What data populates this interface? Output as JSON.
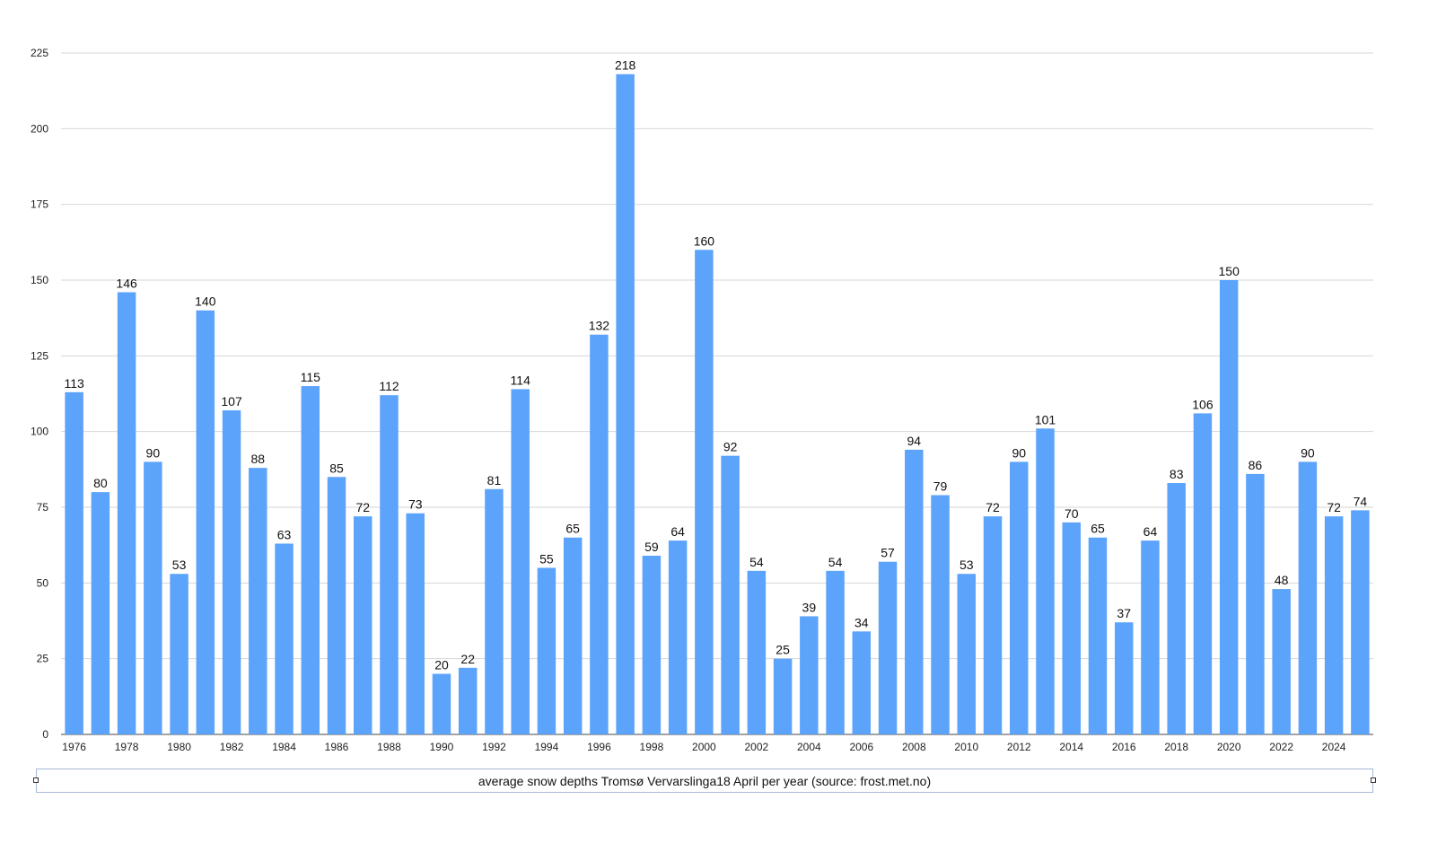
{
  "chart_data": {
    "type": "bar",
    "title": "",
    "caption": "average snow depths Tromsø Vervarslinga18 April per year (source: frost.met.no)",
    "xlabel": "",
    "ylabel": "",
    "ylim": [
      0,
      225
    ],
    "yticks": [
      0,
      25,
      50,
      75,
      100,
      125,
      150,
      175,
      200,
      225
    ],
    "grid": true,
    "bar_color": "#5ba3fb",
    "categories": [
      "1976",
      "1977",
      "1978",
      "1979",
      "1980",
      "1981",
      "1982",
      "1983",
      "1984",
      "1985",
      "1986",
      "1987",
      "1988",
      "1989",
      "1990",
      "1991",
      "1992",
      "1993",
      "1994",
      "1995",
      "1996",
      "1997",
      "1998",
      "1999",
      "2000",
      "2001",
      "2002",
      "2003",
      "2004",
      "2005",
      "2006",
      "2007",
      "2008",
      "2009",
      "2010",
      "2011",
      "2012",
      "2013",
      "2014",
      "2015",
      "2016",
      "2017",
      "2018",
      "2019",
      "2020",
      "2021",
      "2022",
      "2023",
      "2024",
      "2025"
    ],
    "tick_labels": [
      "1976",
      "",
      "1978",
      "",
      "1980",
      "",
      "1982",
      "",
      "1984",
      "",
      "1986",
      "",
      "1988",
      "",
      "1990",
      "",
      "1992",
      "",
      "1994",
      "",
      "1996",
      "",
      "1998",
      "",
      "2000",
      "",
      "2002",
      "",
      "2004",
      "",
      "2006",
      "",
      "2008",
      "",
      "2010",
      "",
      "2012",
      "",
      "2014",
      "",
      "2016",
      "",
      "2018",
      "",
      "2020",
      "",
      "2022",
      "",
      "2024",
      ""
    ],
    "values": [
      113,
      80,
      146,
      90,
      53,
      140,
      107,
      88,
      63,
      115,
      85,
      72,
      112,
      73,
      20,
      22,
      81,
      114,
      55,
      65,
      132,
      218,
      59,
      64,
      160,
      92,
      54,
      25,
      39,
      54,
      34,
      57,
      94,
      79,
      53,
      72,
      90,
      101,
      70,
      65,
      37,
      64,
      83,
      106,
      150,
      86,
      48,
      90,
      72,
      74
    ]
  }
}
